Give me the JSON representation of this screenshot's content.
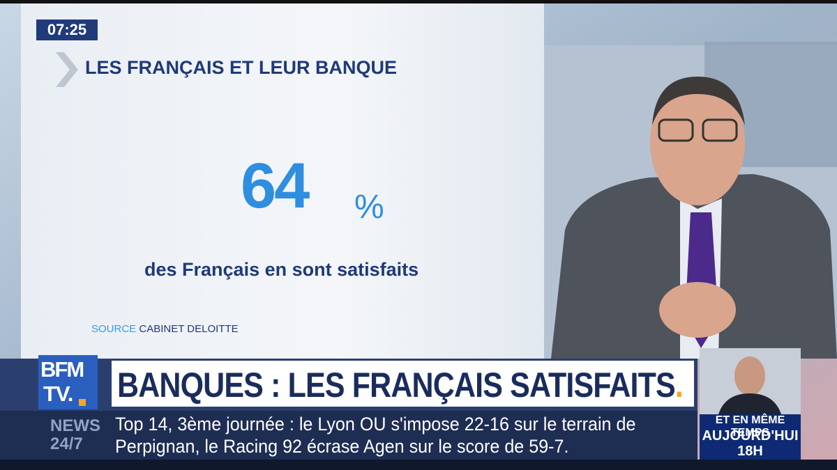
{
  "clock": "07:25",
  "panel": {
    "title": "LES FRANÇAIS ET LEUR BANQUE",
    "figure": 64,
    "unit": "%",
    "caption": "des Français en sont satisfaits",
    "source_label": "SOURCE",
    "source_name": "CABINET DELOITTE"
  },
  "logo": {
    "line1": "BFM",
    "line2": "TV."
  },
  "headline": {
    "text": "BANQUES : LES FRANÇAIS SATISFAITS",
    "dot": "."
  },
  "ticker": {
    "label1": "NEWS",
    "label2": "24/7",
    "lines": [
      "Top 14, 3ème journée : le Lyon OU s'impose 22-16 sur le terrain de",
      "Perpignan, le Racing 92 écrase Agen sur le score de 59-7."
    ]
  },
  "promo": {
    "line1": "ET EN MÊME TEMPS",
    "line2": "AUJOURD'HUI",
    "line3": "18H"
  }
}
